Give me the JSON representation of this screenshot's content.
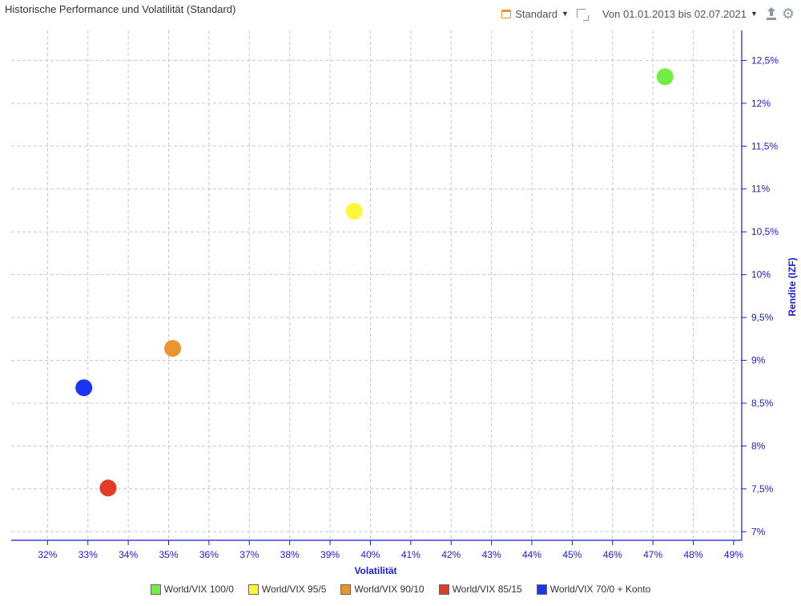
{
  "header": {
    "title": "Historische Performance und Volatilität (Standard)",
    "profile_label": "Standard",
    "date_range": "Von 01.01.2013 bis 02.07.2021"
  },
  "icons": {
    "profile": "calendar-icon",
    "profile_caret": "caret-down-icon",
    "expand": "expand-icon",
    "range_caret": "caret-down-icon",
    "export": "upload-icon",
    "settings": "gear-icon"
  },
  "colors": {
    "axis": "#1a1adb",
    "grid": "#c8c8c8"
  },
  "chart_data": {
    "type": "scatter",
    "title": "Historische Performance und Volatilität (Standard)",
    "xlabel": "Volatilität",
    "ylabel": "Rendite (IZF)",
    "xlim": [
      31.1,
      49.2
    ],
    "ylim": [
      6.9,
      12.85
    ],
    "x_ticks": [
      32,
      33,
      34,
      35,
      36,
      37,
      38,
      39,
      40,
      41,
      42,
      43,
      44,
      45,
      46,
      47,
      48,
      49
    ],
    "x_tick_labels": [
      "32%",
      "33%",
      "34%",
      "35%",
      "36%",
      "37%",
      "38%",
      "39%",
      "40%",
      "41%",
      "42%",
      "43%",
      "44%",
      "45%",
      "46%",
      "47%",
      "48%",
      "49%"
    ],
    "y_ticks": [
      7,
      7.5,
      8,
      8.5,
      9,
      9.5,
      10,
      10.5,
      11,
      11.5,
      12,
      12.5
    ],
    "y_tick_labels": [
      "7%",
      "7,5%",
      "8%",
      "8,5%",
      "9%",
      "9,5%",
      "10%",
      "10,5%",
      "11%",
      "11,5%",
      "12%",
      "12,5%"
    ],
    "grid": true,
    "y_axis_position": "right",
    "legend_position": "bottom",
    "series": [
      {
        "name": "World/VIX 100/0",
        "color": "#71ed43",
        "points": [
          [
            47.3,
            12.31
          ]
        ]
      },
      {
        "name": "World/VIX 95/5",
        "color": "#fdf73a",
        "points": [
          [
            39.6,
            10.74
          ]
        ]
      },
      {
        "name": "World/VIX 90/10",
        "color": "#eb9530",
        "points": [
          [
            35.1,
            9.14
          ]
        ]
      },
      {
        "name": "World/VIX 85/15",
        "color": "#e53a24",
        "points": [
          [
            33.5,
            7.51
          ]
        ]
      },
      {
        "name": "World/VIX 70/0 + Konto",
        "color": "#1a35f6",
        "points": [
          [
            32.9,
            8.68
          ]
        ]
      }
    ]
  }
}
